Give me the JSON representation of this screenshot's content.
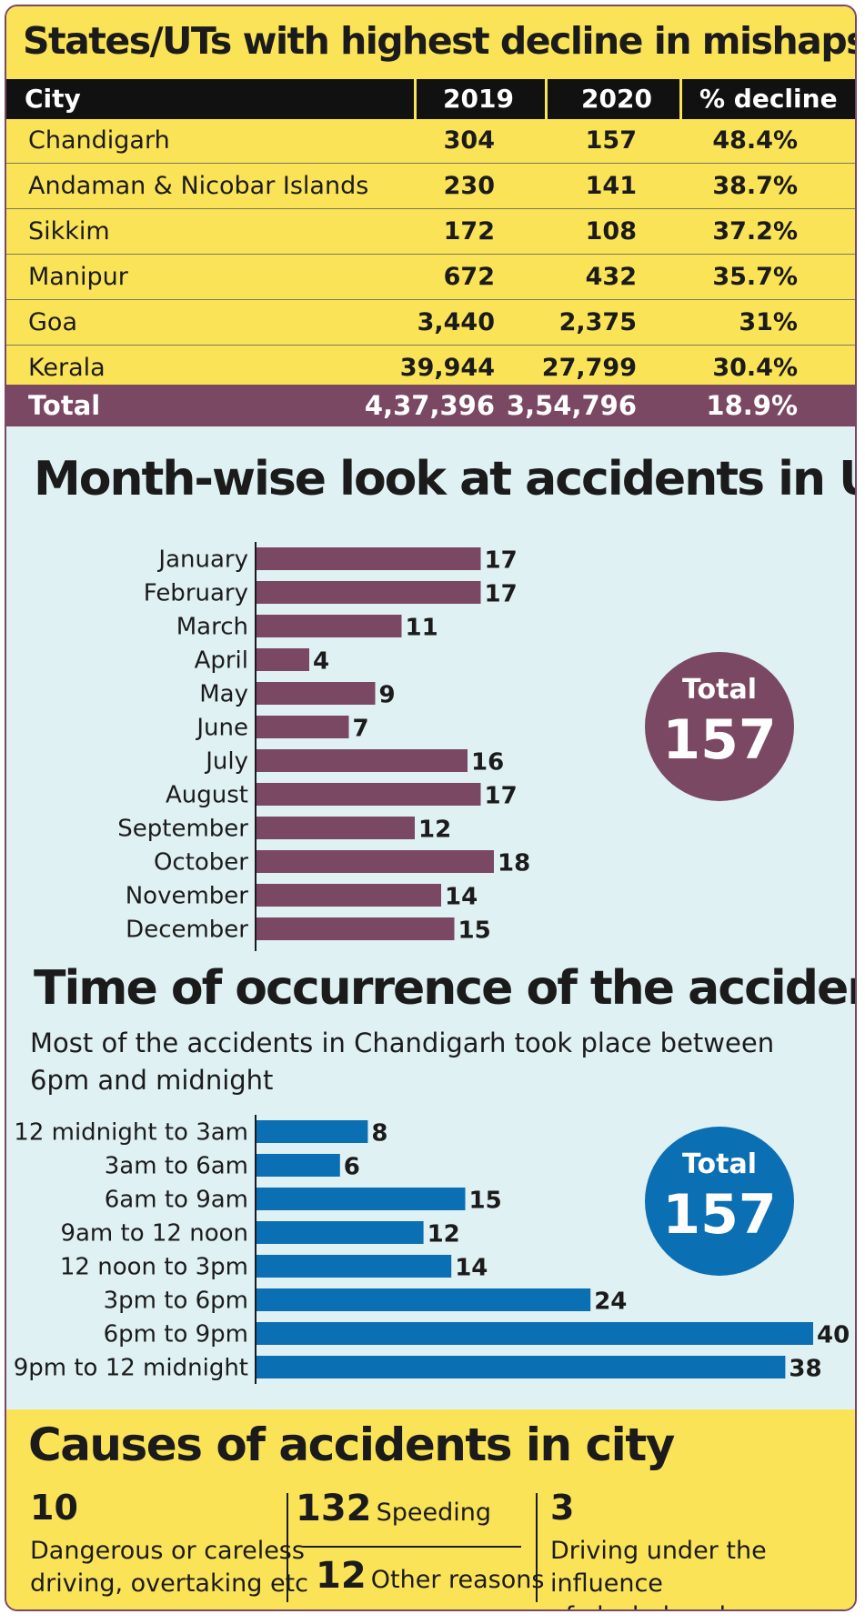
{
  "table": {
    "title": "States/UTs with highest decline in mishaps",
    "headers": [
      "City",
      "2019",
      "2020",
      "% decline"
    ],
    "rows": [
      [
        "Chandigarh",
        "304",
        "157",
        "48.4%"
      ],
      [
        "Andaman & Nicobar Islands",
        "230",
        "141",
        "38.7%"
      ],
      [
        "Sikkim",
        "172",
        "108",
        "37.2%"
      ],
      [
        "Manipur",
        "672",
        "432",
        "35.7%"
      ],
      [
        "Goa",
        "3,440",
        "2,375",
        "31%"
      ],
      [
        "Kerala",
        "39,944",
        "27,799",
        "30.4%"
      ]
    ],
    "total": [
      "Total",
      "4,37,396",
      "3,54,796",
      "18.9%"
    ]
  },
  "month_section": {
    "title": "Month-wise look at accidents in UT",
    "total_label": "Total",
    "total_value": "157"
  },
  "time_section": {
    "title": "Time of occurrence of the accidents",
    "subtitle_line1": "Most of the accidents in Chandigarh took place between",
    "subtitle_line2": "6pm and midnight",
    "total_label": "Total",
    "total_value": "157"
  },
  "causes": {
    "title": "Causes of accidents in city",
    "items": [
      {
        "number": "10",
        "label_line1": "Dangerous or careless",
        "label_line2": "driving, overtaking etc"
      },
      {
        "number": "132",
        "label": "Speeding"
      },
      {
        "number": "12",
        "label": "Other reasons"
      },
      {
        "number": "3",
        "label_line1": "Driving under the influence",
        "label_line2": "of alcohol or drugs"
      }
    ]
  },
  "colors": {
    "yellow": "#fbe358",
    "plum": "#7a4863",
    "blue": "#0b6fb4",
    "panel": "#e0f1f4"
  },
  "chart_data": [
    {
      "type": "bar",
      "orientation": "horizontal",
      "title": "Month-wise look at accidents in UT",
      "categories": [
        "January",
        "February",
        "March",
        "April",
        "May",
        "June",
        "July",
        "August",
        "September",
        "October",
        "November",
        "December"
      ],
      "values": [
        17,
        17,
        11,
        4,
        9,
        7,
        16,
        17,
        12,
        18,
        14,
        15
      ],
      "xlim": [
        0,
        18
      ],
      "color": "#7a4863"
    },
    {
      "type": "bar",
      "orientation": "horizontal",
      "title": "Time of occurrence of the accidents",
      "categories": [
        "12 midnight to 3am",
        "3am to 6am",
        "6am to 9am",
        "9am to 12 noon",
        "12 noon to 3pm",
        "3pm to 6pm",
        "6pm to 9pm",
        "9pm to 12 midnight"
      ],
      "values": [
        8,
        6,
        15,
        12,
        14,
        24,
        40,
        38
      ],
      "xlim": [
        0,
        40
      ],
      "color": "#0b6fb4"
    }
  ]
}
